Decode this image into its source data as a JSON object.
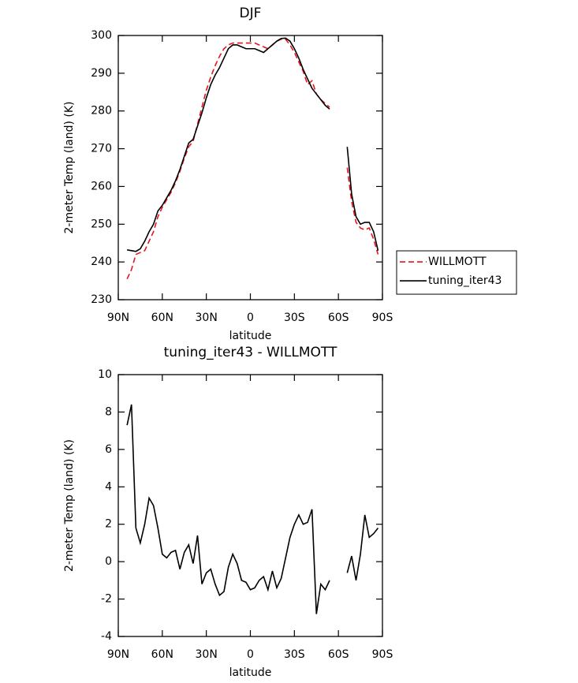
{
  "chart_data": [
    {
      "type": "line",
      "title": "DJF",
      "x_label": "latitude",
      "y_label": "2-meter Temp (land) (K)",
      "x": [
        84,
        81,
        78,
        75,
        72,
        69,
        66,
        63,
        60,
        57,
        54,
        51,
        48,
        45,
        42,
        39,
        36,
        33,
        30,
        27,
        24,
        21,
        18,
        15,
        12,
        9,
        6,
        3,
        0,
        -3,
        -6,
        -9,
        -12,
        -15,
        -18,
        -21,
        -24,
        -27,
        -30,
        -33,
        -36,
        -39,
        -42,
        -45,
        -48,
        -51,
        -54,
        -57,
        -60,
        -63,
        -66,
        -69,
        -72,
        -75,
        -78,
        -81,
        -84,
        -87
      ],
      "series": [
        {
          "name": "WILLMOTT",
          "color": "#e8141e",
          "linestyle": "dashed",
          "values": [
            235.5,
            238,
            242,
            242.5,
            243,
            245.5,
            248,
            252,
            254.5,
            256.5,
            258.5,
            261,
            264,
            267.5,
            270.5,
            272,
            276.5,
            281,
            285.5,
            289,
            292,
            294.5,
            296.5,
            297.5,
            298,
            298,
            298,
            298,
            298,
            298,
            297.5,
            297,
            296.5,
            297.5,
            298.5,
            299,
            299,
            297.5,
            295.5,
            293,
            290.5,
            287,
            288,
            284.5,
            283,
            282,
            281,
            null,
            null,
            null,
            265,
            256,
            250.5,
            249,
            248.5,
            249,
            246,
            242
          ]
        },
        {
          "name": "tuning_iter43",
          "color": "#000000",
          "linestyle": "solid",
          "values": [
            243.2,
            243,
            242.8,
            243.5,
            245.5,
            248,
            250,
            253.5,
            255,
            257,
            259,
            261.5,
            264.5,
            268,
            271.5,
            272.5,
            276,
            279.5,
            283.5,
            287,
            289.5,
            291.5,
            294,
            296.5,
            297.5,
            297.5,
            297,
            296.5,
            296.5,
            296.5,
            296,
            295.5,
            296.5,
            297.5,
            298.5,
            299.2,
            299.3,
            298.5,
            296.5,
            294,
            291,
            288.5,
            286,
            284.5,
            283,
            281.5,
            280.5,
            null,
            null,
            null,
            270.5,
            258,
            252,
            250,
            250.5,
            250.5,
            248,
            243
          ]
        }
      ],
      "xlim": [
        90,
        -90
      ],
      "xticks": [
        {
          "value": 90,
          "label": "90N"
        },
        {
          "value": 60,
          "label": "60N"
        },
        {
          "value": 30,
          "label": "30N"
        },
        0,
        {
          "value": -30,
          "label": "30S"
        },
        {
          "value": -60,
          "label": "60S"
        },
        {
          "value": -90,
          "label": "90S"
        }
      ],
      "ylim": [
        230,
        300
      ],
      "yticks": [
        230,
        240,
        250,
        260,
        270,
        280,
        290,
        300
      ],
      "legend": "right"
    },
    {
      "type": "line",
      "title": "tuning_iter43 - WILLMOTT",
      "x_label": "latitude",
      "y_label": "2-meter Temp (land) (K)",
      "x": [
        84,
        81,
        78,
        75,
        72,
        69,
        66,
        63,
        60,
        57,
        54,
        51,
        48,
        45,
        42,
        39,
        36,
        33,
        30,
        27,
        24,
        21,
        18,
        15,
        12,
        9,
        6,
        3,
        0,
        -3,
        -6,
        -9,
        -12,
        -15,
        -18,
        -21,
        -24,
        -27,
        -30,
        -33,
        -36,
        -39,
        -42,
        -45,
        -48,
        -51,
        -54,
        -57,
        -60,
        -63,
        -66,
        -69,
        -72,
        -75,
        -78,
        -81,
        -84,
        -87
      ],
      "values": [
        7.3,
        8.4,
        1.8,
        1.0,
        2.0,
        3.4,
        3.0,
        1.8,
        0.4,
        0.2,
        0.5,
        0.6,
        -0.4,
        0.5,
        0.9,
        -0.1,
        1.4,
        -1.2,
        -0.6,
        -0.4,
        -1.2,
        -1.8,
        -1.6,
        -0.3,
        0.4,
        -0.1,
        -1.0,
        -1.1,
        -1.5,
        -1.4,
        -1.0,
        -0.8,
        -1.5,
        -0.5,
        -1.4,
        -0.9,
        0.2,
        1.3,
        2.0,
        2.5,
        2.0,
        2.1,
        2.8,
        -2.8,
        -1.2,
        -1.5,
        -1.0,
        null,
        null,
        null,
        -0.6,
        0.3,
        -1.0,
        0.4,
        2.5,
        1.3,
        1.5,
        1.8
      ],
      "color": "#000000",
      "xlim": [
        90,
        -90
      ],
      "xticks": [
        {
          "value": 90,
          "label": "90N"
        },
        {
          "value": 60,
          "label": "60N"
        },
        {
          "value": 30,
          "label": "30N"
        },
        0,
        {
          "value": -30,
          "label": "30S"
        },
        {
          "value": -60,
          "label": "60S"
        },
        {
          "value": -90,
          "label": "90S"
        }
      ],
      "ylim": [
        -4,
        10
      ],
      "yticks": [
        -4,
        -2,
        0,
        2,
        4,
        6,
        8,
        10
      ]
    }
  ]
}
